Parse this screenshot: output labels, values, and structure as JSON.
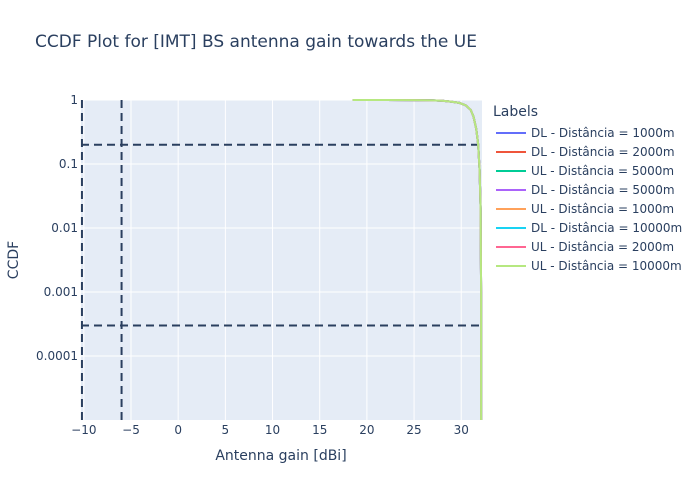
{
  "chart_data": {
    "type": "line",
    "title": "CCDF Plot for [IMT] BS antenna gain towards the UE",
    "xlabel": "Antenna gain [dBi]",
    "ylabel": "CCDF",
    "x_tick_labels": [
      "−10",
      "−5",
      "0",
      "5",
      "10",
      "15",
      "20",
      "25",
      "30"
    ],
    "x_tick_values": [
      -10,
      -5,
      0,
      5,
      10,
      15,
      20,
      25,
      30
    ],
    "xlim": [
      -10.3,
      32.2
    ],
    "y_scale": "log",
    "y_tick_labels": [
      "1",
      "0.1",
      "0.01",
      "0.001",
      "0.0001"
    ],
    "y_tick_values": [
      1,
      0.1,
      0.01,
      0.001,
      0.0001
    ],
    "ylim": [
      1e-05,
      1
    ],
    "grid": true,
    "legend_title": "Labels",
    "legend_position": "right",
    "reference_lines": {
      "vertical_x": [
        -10.2,
        -6
      ],
      "horizontal_y": [
        0.2,
        0.0003
      ]
    },
    "series": [
      {
        "name": "DL - Distância = 1000m",
        "color": "#636efa"
      },
      {
        "name": "DL - Distância = 2000m",
        "color": "#EF553B"
      },
      {
        "name": "UL - Distância = 5000m",
        "color": "#00cc96"
      },
      {
        "name": "DL - Distância = 5000m",
        "color": "#ab63fa"
      },
      {
        "name": "UL - Distância = 1000m",
        "color": "#FFA15A"
      },
      {
        "name": "DL - Distância = 10000m",
        "color": "#19d3f3"
      },
      {
        "name": "UL - Distância = 2000m",
        "color": "#FF6692"
      },
      {
        "name": "UL - Distância = 10000m",
        "color": "#B6E880"
      }
    ],
    "curve": {
      "x": [
        18.5,
        22,
        25,
        27,
        28,
        29,
        29.8,
        30.5,
        31,
        31.3,
        31.6,
        31.8,
        31.95,
        32.05,
        32.1,
        32.1
      ],
      "y": [
        1,
        0.999,
        0.995,
        0.985,
        0.97,
        0.94,
        0.9,
        0.82,
        0.7,
        0.55,
        0.35,
        0.2,
        0.08,
        0.02,
        0.001,
        1e-05
      ]
    }
  }
}
